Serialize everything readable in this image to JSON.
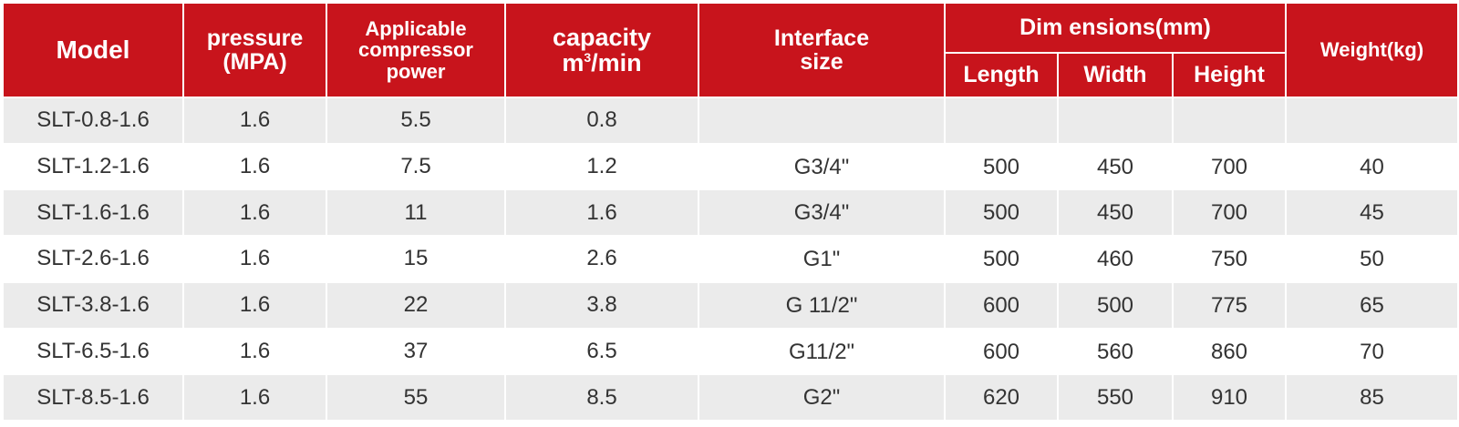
{
  "headers": {
    "model": "Model",
    "pressure": [
      "pressure",
      "(MPA)"
    ],
    "power": [
      "Applicable",
      "compressor",
      "power"
    ],
    "capacity_title": "capacity",
    "capacity_unit_base": "m",
    "capacity_unit_sup": "3",
    "capacity_unit_rest": "/min",
    "interface": [
      "Interface",
      "size"
    ],
    "dimensions": "Dim ensions(mm)",
    "length": "Length",
    "width": "Width",
    "height": "Height",
    "weight": "Weight(kg)"
  },
  "rows": [
    {
      "model": "SLT-0.8-1.6",
      "pressure": "1.6",
      "power": "5.5",
      "capacity": "0.8",
      "interface": "",
      "length": "",
      "width": "",
      "height": "",
      "weight": ""
    },
    {
      "model": "SLT-1.2-1.6",
      "pressure": "1.6",
      "power": "7.5",
      "capacity": "1.2",
      "interface": "G3/4\"",
      "length": "500",
      "width": "450",
      "height": "700",
      "weight": "40"
    },
    {
      "model": "SLT-1.6-1.6",
      "pressure": "1.6",
      "power": "11",
      "capacity": "1.6",
      "interface": "G3/4\"",
      "length": "500",
      "width": "450",
      "height": "700",
      "weight": "45"
    },
    {
      "model": "SLT-2.6-1.6",
      "pressure": "1.6",
      "power": "15",
      "capacity": "2.6",
      "interface": "G1\"",
      "length": "500",
      "width": "460",
      "height": "750",
      "weight": "50"
    },
    {
      "model": "SLT-3.8-1.6",
      "pressure": "1.6",
      "power": "22",
      "capacity": "3.8",
      "interface": "G 11/2\"",
      "length": "600",
      "width": "500",
      "height": "775",
      "weight": "65"
    },
    {
      "model": "SLT-6.5-1.6",
      "pressure": "1.6",
      "power": "37",
      "capacity": "6.5",
      "interface": "G11/2\"",
      "length": "600",
      "width": "560",
      "height": "860",
      "weight": "70"
    },
    {
      "model": "SLT-8.5-1.6",
      "pressure": "1.6",
      "power": "55",
      "capacity": "8.5",
      "interface": "G2\"",
      "length": "620",
      "width": "550",
      "height": "910",
      "weight": "85"
    }
  ],
  "colors": {
    "header_bg": "#c8141c",
    "header_text": "#ffffff",
    "row_shade": "#ebebeb",
    "row_plain": "#ffffff",
    "cell_text": "#333333"
  }
}
